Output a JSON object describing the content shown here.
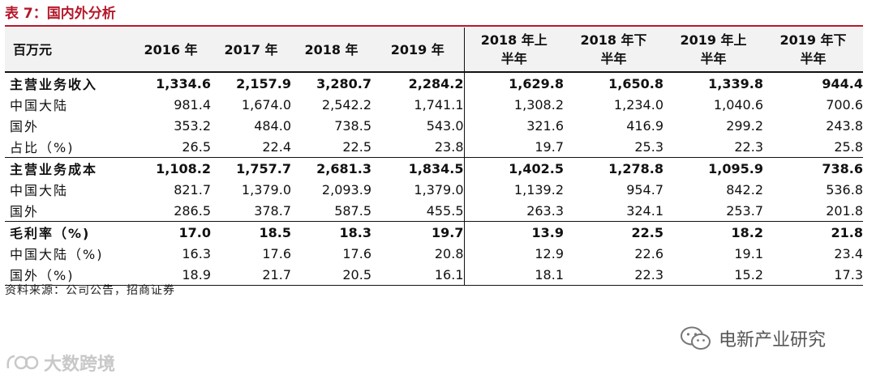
{
  "title": "表 7：国内外分析",
  "table": {
    "headers": [
      "百万元",
      "2016 年",
      "2017 年",
      "2018 年",
      "2019 年",
      "2018 年上\n半年",
      "2018 年下\n半年",
      "2019 年上\n半年",
      "2019 年下\n半年"
    ],
    "rows": [
      [
        "主营业务收入",
        "1,334.6",
        "2,157.9",
        "3,280.7",
        "2,284.2",
        "1,629.8",
        "1,650.8",
        "1,339.8",
        "944.4"
      ],
      [
        "中国大陆",
        "981.4",
        "1,674.0",
        "2,542.2",
        "1,741.1",
        "1,308.2",
        "1,234.0",
        "1,040.6",
        "700.6"
      ],
      [
        "国外",
        "353.2",
        "484.0",
        "738.5",
        "543.0",
        "321.6",
        "416.9",
        "299.2",
        "243.8"
      ],
      [
        "占比（%)",
        "26.5",
        "22.4",
        "22.5",
        "23.8",
        "19.7",
        "25.3",
        "22.3",
        "25.8"
      ],
      [
        "主营业务成本",
        "1,108.2",
        "1,757.7",
        "2,681.3",
        "1,834.5",
        "1,402.5",
        "1,278.8",
        "1,095.9",
        "738.6"
      ],
      [
        "中国大陆",
        "821.7",
        "1,379.0",
        "2,093.9",
        "1,379.0",
        "1,139.2",
        "954.7",
        "842.2",
        "536.8"
      ],
      [
        "国外",
        "286.5",
        "378.7",
        "587.5",
        "455.5",
        "263.3",
        "324.1",
        "253.7",
        "201.8"
      ],
      [
        "毛利率（%)",
        "17.0",
        "18.5",
        "18.3",
        "19.7",
        "13.9",
        "22.5",
        "18.2",
        "21.8"
      ],
      [
        "中国大陆（%)",
        "16.3",
        "17.6",
        "17.6",
        "20.8",
        "12.9",
        "22.6",
        "19.1",
        "23.4"
      ],
      [
        "国外（%)",
        "18.9",
        "21.7",
        "20.5",
        "16.1",
        "18.1",
        "22.3",
        "15.2",
        "17.3"
      ]
    ]
  },
  "source": "资料来源：公司公告，招商证券",
  "watermark_wechat": "电新产业研究",
  "watermark_brand": "大数跨境",
  "colors": {
    "accent": "#b5182a",
    "header_bg": "#f2f2f2"
  }
}
